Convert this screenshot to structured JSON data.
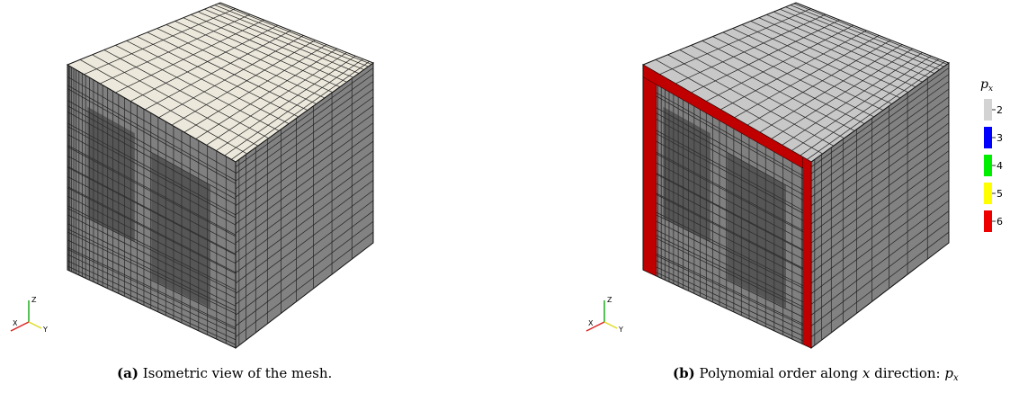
{
  "figures": [
    {
      "label": "(a)",
      "caption": "Isometric view of the mesh.",
      "axes": [
        "Z",
        "X",
        "Y"
      ]
    },
    {
      "label": "(b)",
      "caption": "Polynomial order along",
      "caption_var": "x",
      "caption_rest": "direction:",
      "caption_symbol": "p",
      "caption_subscript": "x",
      "axes": [
        "Z",
        "X",
        "Y"
      ],
      "legend": {
        "title": "p",
        "title_subscript": "x",
        "entries": [
          {
            "label": 2,
            "color": "#d3d3d3"
          },
          {
            "label": 3,
            "color": "#0000ff"
          },
          {
            "label": 4,
            "color": "#00ee00"
          },
          {
            "label": 5,
            "color": "#ffff00"
          },
          {
            "label": 6,
            "color": "#ee0000"
          }
        ]
      }
    }
  ]
}
